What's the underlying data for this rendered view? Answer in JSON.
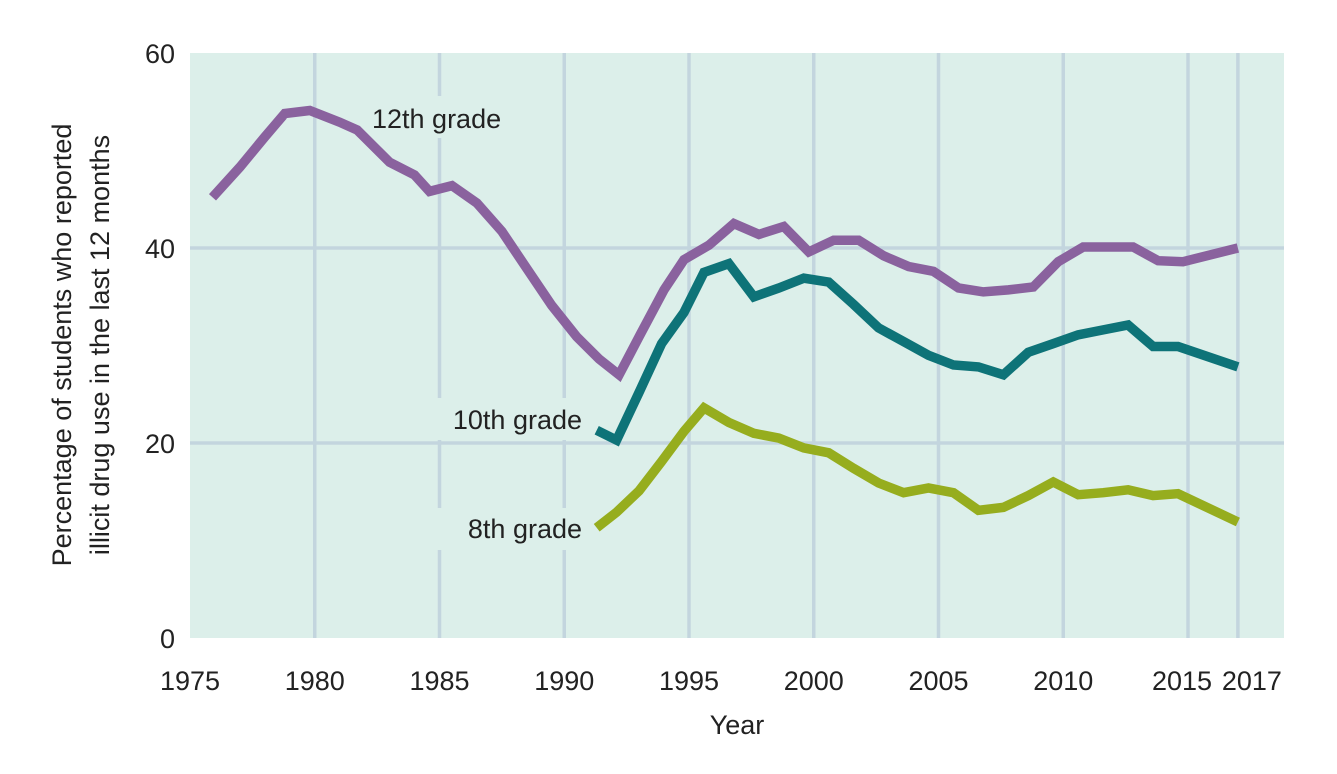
{
  "chart_data": {
    "type": "line",
    "title": "",
    "xlabel": "Year",
    "ylabel_lines": [
      "Percentage of students who reported",
      "illicit drug use in the last 12 months"
    ],
    "xlim": [
      1975,
      2018.8
    ],
    "ylim": [
      0,
      60
    ],
    "grid": true,
    "x_ticks": [
      1975,
      1980,
      1985,
      1990,
      1995,
      2000,
      2005,
      2010,
      2015,
      2017
    ],
    "x_tick_labels": [
      "1975",
      "1980",
      "1985",
      "1990",
      "1995",
      "2000",
      "2005",
      "2010",
      "2015",
      "2017"
    ],
    "y_ticks": [
      0,
      20,
      40,
      60
    ],
    "y_tick_labels": [
      "0",
      "20",
      "40",
      "60"
    ],
    "legend": "inline-labels",
    "colors": {
      "background": "#dcefea",
      "grid": "#c3d5de",
      "12th": "#8a629e",
      "10th": "#0e7378",
      "8th": "#96ad1e"
    },
    "series": [
      {
        "name": "12th grade",
        "key": "12th",
        "label": "12th grade",
        "points": [
          [
            1975.9,
            45.2
          ],
          [
            1977,
            48.3
          ],
          [
            1978,
            51.4
          ],
          [
            1978.8,
            53.8
          ],
          [
            1979.8,
            54.1
          ],
          [
            1981,
            52.9
          ],
          [
            1981.7,
            52.1
          ],
          [
            1983,
            48.8
          ],
          [
            1984,
            47.5
          ],
          [
            1984.6,
            45.8
          ],
          [
            1985.5,
            46.4
          ],
          [
            1986.5,
            44.6
          ],
          [
            1987.5,
            41.7
          ],
          [
            1988.5,
            37.9
          ],
          [
            1989.5,
            34.1
          ],
          [
            1990.5,
            30.9
          ],
          [
            1991.4,
            28.6
          ],
          [
            1992.2,
            27.0
          ],
          [
            1993,
            30.9
          ],
          [
            1994,
            35.7
          ],
          [
            1994.8,
            38.8
          ],
          [
            1995.8,
            40.3
          ],
          [
            1996.8,
            42.5
          ],
          [
            1997.8,
            41.4
          ],
          [
            1998.8,
            42.2
          ],
          [
            1999.8,
            39.6
          ],
          [
            2000.8,
            40.8
          ],
          [
            2001.8,
            40.8
          ],
          [
            2002.8,
            39.2
          ],
          [
            2003.8,
            38.1
          ],
          [
            2004.8,
            37.6
          ],
          [
            2005.8,
            35.9
          ],
          [
            2006.8,
            35.5
          ],
          [
            2007.8,
            35.7
          ],
          [
            2008.8,
            36.0
          ],
          [
            2009.8,
            38.6
          ],
          [
            2010.8,
            40.1
          ],
          [
            2011.8,
            40.1
          ],
          [
            2012.8,
            40.1
          ],
          [
            2013.8,
            38.7
          ],
          [
            2014.8,
            38.6
          ],
          [
            2017,
            40.0
          ]
        ]
      },
      {
        "name": "10th grade",
        "key": "10th",
        "label": "10th grade",
        "points": [
          [
            1991.3,
            21.3
          ],
          [
            1992.1,
            20.3
          ],
          [
            1993,
            25.2
          ],
          [
            1993.9,
            30.2
          ],
          [
            1994.8,
            33.4
          ],
          [
            1995.6,
            37.5
          ],
          [
            1996.6,
            38.4
          ],
          [
            1997.6,
            35.0
          ],
          [
            1998.6,
            35.9
          ],
          [
            1999.6,
            36.9
          ],
          [
            2000.6,
            36.5
          ],
          [
            2001.6,
            34.2
          ],
          [
            2002.6,
            31.8
          ],
          [
            2003.6,
            30.4
          ],
          [
            2004.6,
            29.0
          ],
          [
            2005.6,
            28.0
          ],
          [
            2006.6,
            27.8
          ],
          [
            2007.6,
            27.0
          ],
          [
            2008.6,
            29.3
          ],
          [
            2009.6,
            30.2
          ],
          [
            2010.6,
            31.1
          ],
          [
            2011.6,
            31.6
          ],
          [
            2012.6,
            32.1
          ],
          [
            2013.6,
            29.9
          ],
          [
            2014.6,
            29.9
          ],
          [
            2017,
            27.8
          ]
        ]
      },
      {
        "name": "8th grade",
        "key": "8th",
        "label": "8th grade",
        "points": [
          [
            1991.3,
            11.3
          ],
          [
            1992.1,
            12.9
          ],
          [
            1993,
            15.1
          ],
          [
            1993.9,
            18.1
          ],
          [
            1994.8,
            21.2
          ],
          [
            1995.6,
            23.6
          ],
          [
            1996.6,
            22.1
          ],
          [
            1997.6,
            21.0
          ],
          [
            1998.6,
            20.5
          ],
          [
            1999.6,
            19.5
          ],
          [
            2000.6,
            19.0
          ],
          [
            2001.6,
            17.4
          ],
          [
            2002.6,
            15.9
          ],
          [
            2003.6,
            14.9
          ],
          [
            2004.6,
            15.4
          ],
          [
            2005.6,
            14.9
          ],
          [
            2006.6,
            13.1
          ],
          [
            2007.6,
            13.4
          ],
          [
            2008.6,
            14.6
          ],
          [
            2009.6,
            16.0
          ],
          [
            2010.6,
            14.7
          ],
          [
            2011.6,
            14.9
          ],
          [
            2012.6,
            15.2
          ],
          [
            2013.6,
            14.6
          ],
          [
            2014.6,
            14.8
          ],
          [
            2017,
            11.9
          ]
        ]
      }
    ]
  }
}
